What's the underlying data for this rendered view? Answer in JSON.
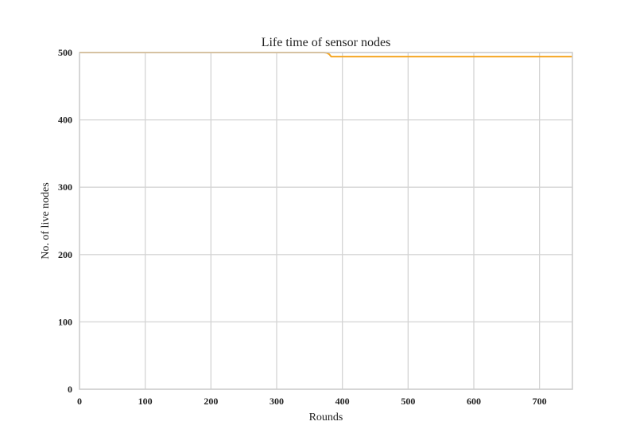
{
  "chart_data": {
    "type": "line",
    "title": "Life time of sensor nodes",
    "xlabel": "Rounds",
    "ylabel": "No. of live nodes",
    "xlim": [
      0,
      750
    ],
    "ylim": [
      0,
      500
    ],
    "x_ticks": [
      0,
      100,
      200,
      300,
      400,
      500,
      600,
      700
    ],
    "y_ticks": [
      0,
      100,
      200,
      300,
      400,
      500
    ],
    "grid": true,
    "series": [
      {
        "color": "#f5a623",
        "x": [
          0,
          372,
          376,
          380,
          383,
          750
        ],
        "y": [
          500,
          500,
          499.5,
          497.5,
          494,
          494
        ]
      }
    ]
  }
}
